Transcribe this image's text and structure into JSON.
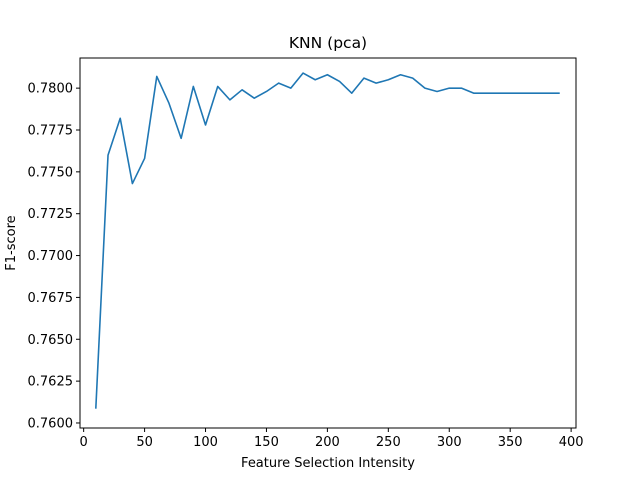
{
  "chart_data": {
    "type": "line",
    "title": "KNN (pca)",
    "xlabel": "Feature Selection Intensity",
    "ylabel": "F1-score",
    "xlim": [
      -3,
      404
    ],
    "ylim": [
      0.7597,
      0.7818
    ],
    "x_ticks": [
      0,
      50,
      100,
      150,
      200,
      250,
      300,
      350,
      400
    ],
    "x_tick_labels": [
      "0",
      "50",
      "100",
      "150",
      "200",
      "250",
      "300",
      "350",
      "400"
    ],
    "y_ticks": [
      0.76,
      0.7625,
      0.765,
      0.7675,
      0.77,
      0.7725,
      0.775,
      0.7775,
      0.78
    ],
    "y_tick_labels": [
      "0.7600",
      "0.7625",
      "0.7650",
      "0.7675",
      "0.7700",
      "0.7725",
      "0.7750",
      "0.7775",
      "0.7800"
    ],
    "grid": false,
    "series": [
      {
        "color": "#1f77b4",
        "x": [
          10,
          20,
          30,
          40,
          50,
          60,
          70,
          80,
          90,
          100,
          110,
          120,
          130,
          140,
          150,
          160,
          170,
          180,
          190,
          200,
          210,
          220,
          230,
          240,
          250,
          260,
          270,
          280,
          290,
          300,
          310,
          320,
          330,
          340,
          350,
          360,
          370,
          380,
          390
        ],
        "y": [
          0.7609,
          0.776,
          0.7782,
          0.7743,
          0.7758,
          0.7807,
          0.7791,
          0.777,
          0.7801,
          0.7778,
          0.7801,
          0.7793,
          0.7799,
          0.7794,
          0.7798,
          0.7803,
          0.78,
          0.7809,
          0.7805,
          0.7808,
          0.7804,
          0.7797,
          0.7806,
          0.7803,
          0.7805,
          0.7808,
          0.7806,
          0.78,
          0.7798,
          0.78,
          0.78,
          0.7797,
          0.7797,
          0.7797,
          0.7797,
          0.7797,
          0.7797,
          0.7797,
          0.7797
        ]
      }
    ]
  }
}
